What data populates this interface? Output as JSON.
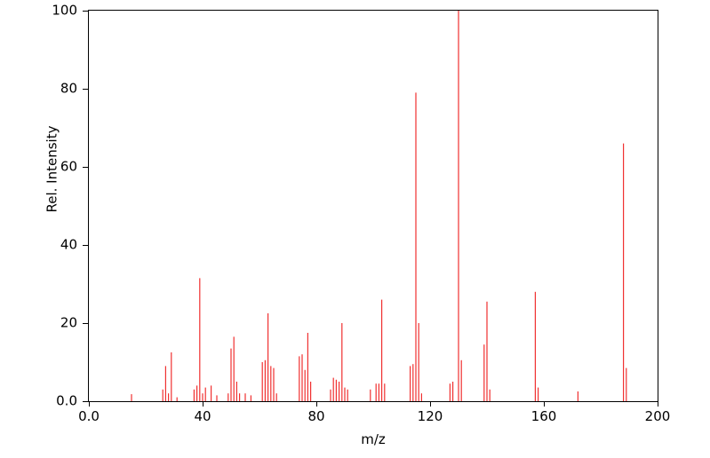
{
  "chart_data": {
    "type": "bar",
    "subtype": "mass-spectrum-stick-plot",
    "title": "",
    "xlabel": "m/z",
    "ylabel": "Rel. Intensity",
    "xlim": [
      0,
      200
    ],
    "ylim": [
      0,
      100
    ],
    "grid": false,
    "legend": false,
    "stick_color": "#f03030",
    "axis_color": "#000000",
    "x_ticks": [
      {
        "value": 0,
        "label": "0.0"
      },
      {
        "value": 40,
        "label": "40"
      },
      {
        "value": 80,
        "label": "80"
      },
      {
        "value": 120,
        "label": "120"
      },
      {
        "value": 160,
        "label": "160"
      },
      {
        "value": 200,
        "label": "200"
      }
    ],
    "y_ticks": [
      {
        "value": 0,
        "label": "0.0"
      },
      {
        "value": 20,
        "label": "20"
      },
      {
        "value": 40,
        "label": "40"
      },
      {
        "value": 60,
        "label": "60"
      },
      {
        "value": 80,
        "label": "80"
      },
      {
        "value": 100,
        "label": "100"
      }
    ],
    "peaks": [
      [
        15,
        1.8
      ],
      [
        26,
        3
      ],
      [
        27,
        9
      ],
      [
        28,
        2
      ],
      [
        29,
        12.5
      ],
      [
        31,
        1
      ],
      [
        37,
        3
      ],
      [
        38,
        4
      ],
      [
        39,
        31.5
      ],
      [
        40,
        2
      ],
      [
        41,
        3.5
      ],
      [
        43,
        4
      ],
      [
        45,
        1.5
      ],
      [
        49,
        2
      ],
      [
        50,
        13.5
      ],
      [
        51,
        16.5
      ],
      [
        52,
        5
      ],
      [
        53,
        2
      ],
      [
        55,
        2
      ],
      [
        57,
        1.5
      ],
      [
        61,
        10
      ],
      [
        62,
        10.5
      ],
      [
        63,
        22.5
      ],
      [
        64,
        9
      ],
      [
        65,
        8.5
      ],
      [
        66,
        2
      ],
      [
        74,
        11.5
      ],
      [
        75,
        12
      ],
      [
        76,
        8
      ],
      [
        77,
        17.5
      ],
      [
        78,
        5
      ],
      [
        85,
        3
      ],
      [
        86,
        6
      ],
      [
        87,
        5.5
      ],
      [
        88,
        5
      ],
      [
        89,
        20
      ],
      [
        90,
        3.5
      ],
      [
        91,
        3
      ],
      [
        99,
        3
      ],
      [
        101,
        4.5
      ],
      [
        102,
        4.5
      ],
      [
        103,
        26
      ],
      [
        104,
        4.5
      ],
      [
        113,
        9
      ],
      [
        114,
        9.5
      ],
      [
        115,
        79
      ],
      [
        116,
        20
      ],
      [
        117,
        2
      ],
      [
        127,
        4.5
      ],
      [
        128,
        5
      ],
      [
        130,
        100
      ],
      [
        131,
        10.5
      ],
      [
        139,
        14.5
      ],
      [
        140,
        25.5
      ],
      [
        141,
        3
      ],
      [
        157,
        28
      ],
      [
        158,
        3.5
      ],
      [
        172,
        2.5
      ],
      [
        188,
        66
      ],
      [
        189,
        8.5
      ]
    ]
  }
}
